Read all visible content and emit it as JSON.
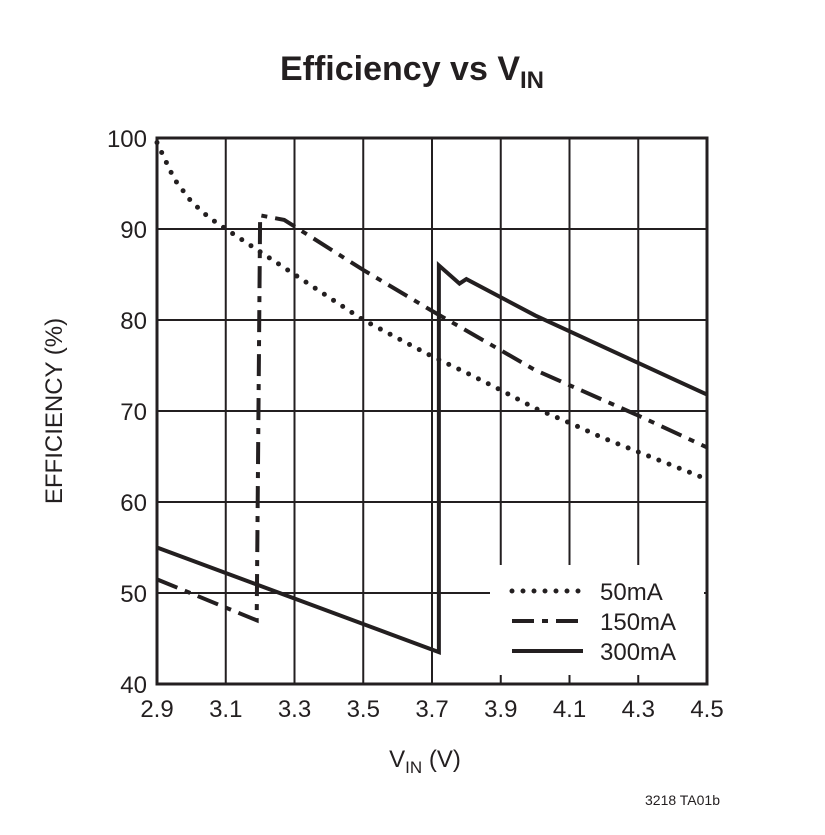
{
  "chart_data": {
    "type": "line",
    "title": {
      "main": "Efficiency vs V",
      "sub": "IN"
    },
    "xlabel": {
      "main": "V",
      "sub": "IN",
      "unit": " (V)"
    },
    "ylabel": "EFFICIENCY (%)",
    "xlim": [
      2.9,
      4.5
    ],
    "ylim": [
      40,
      100
    ],
    "xticks": [
      "2.9",
      "3.1",
      "3.3",
      "3.5",
      "3.7",
      "3.9",
      "4.1",
      "4.3",
      "4.5"
    ],
    "yticks": [
      "40",
      "50",
      "60",
      "70",
      "80",
      "90",
      "100"
    ],
    "grid": true,
    "legend_placement": "bottom-right",
    "series": [
      {
        "name": "50mA",
        "style": "dotted",
        "x": [
          2.9,
          2.95,
          3.0,
          3.05,
          3.1,
          3.2,
          3.3,
          3.4,
          3.5,
          3.6,
          3.7,
          3.8,
          3.9,
          4.0,
          4.1,
          4.2,
          4.3,
          4.4,
          4.5
        ],
        "y": [
          99.5,
          95.5,
          93,
          91.3,
          90,
          87.5,
          85,
          82.5,
          80,
          78,
          76,
          74.2,
          72.3,
          70.3,
          68.7,
          67,
          65.5,
          64,
          62.5
        ]
      },
      {
        "name": "150mA",
        "style": "dash-dot",
        "x": [
          2.9,
          3.19,
          3.2,
          3.27,
          3.5,
          3.7,
          4.0,
          4.3,
          4.5
        ],
        "y": [
          51.5,
          47,
          91.5,
          91,
          85.5,
          81,
          74.5,
          69.5,
          66
        ]
      },
      {
        "name": "300mA",
        "style": "solid",
        "x": [
          2.9,
          3.72,
          3.72,
          3.78,
          3.8,
          4.0,
          4.5
        ],
        "y": [
          55,
          43.5,
          86,
          84,
          84.5,
          80.5,
          71.8
        ]
      }
    ],
    "colors": {
      "line": "#231f20",
      "grid": "#231f20"
    }
  },
  "footer": "3218 TA01b"
}
